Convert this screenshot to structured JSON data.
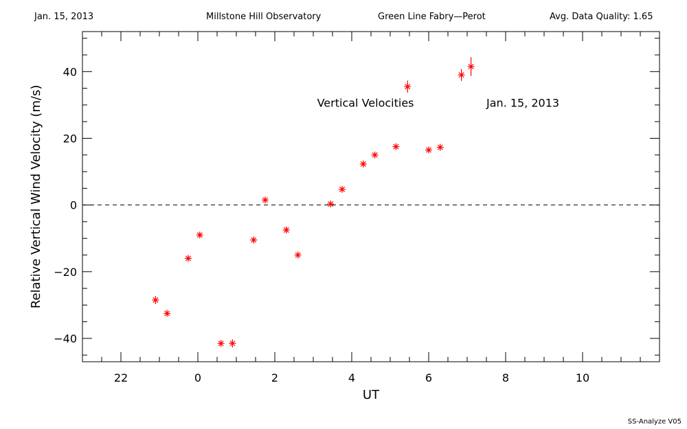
{
  "header": {
    "date": "Jan. 15, 2013",
    "observatory": "Millstone Hill Observatory",
    "instrument": "Green Line Fabry—Perot",
    "quality": "Avg. Data Quality: 1.65"
  },
  "footer": {
    "version": "SS-Analyze V05"
  },
  "chart_data": {
    "type": "scatter",
    "xlabel": "UT",
    "ylabel": "Relative Vertical Wind Velocity (m/s)",
    "x_ticks": [
      22,
      0,
      2,
      4,
      6,
      8,
      10
    ],
    "x_ticks_hours": [
      -2,
      0,
      2,
      4,
      6,
      8,
      10
    ],
    "y_ticks": [
      -40,
      -20,
      0,
      20,
      40
    ],
    "xlim": [
      -3,
      12
    ],
    "ylim": [
      -47,
      52
    ],
    "annotations": [
      "Vertical Velocities",
      "Jan. 15, 2013"
    ],
    "reference_line": 0,
    "marker_color": "#ff0000",
    "series": [
      {
        "x": [
          -1.1,
          -0.8,
          -0.25,
          0.05,
          0.6,
          0.9,
          1.45,
          1.75,
          2.3,
          2.6,
          3.45,
          3.75,
          4.3,
          4.6,
          5.15,
          5.45,
          6.0,
          6.3,
          6.85,
          7.1
        ],
        "y": [
          -28.5,
          -32.5,
          -16,
          -9,
          -41.5,
          -41.5,
          -10.5,
          1.5,
          -7.5,
          -15,
          0.3,
          4.7,
          12.3,
          15,
          17.5,
          35.5,
          16.5,
          17.3,
          39,
          41.5
        ],
        "err": [
          1.2,
          0.8,
          0.6,
          0.7,
          1.0,
          1.2,
          0.8,
          0.8,
          0.9,
          0.8,
          0.5,
          0.5,
          0.6,
          0.6,
          0.6,
          1.8,
          0.6,
          0.6,
          1.8,
          2.8
        ]
      }
    ]
  }
}
